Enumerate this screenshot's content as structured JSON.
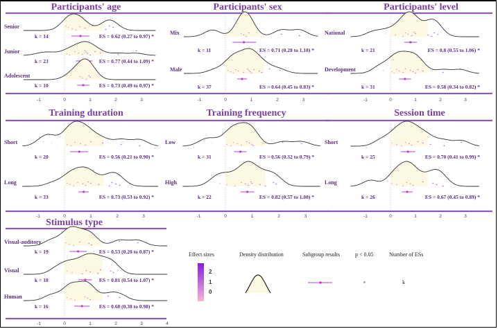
{
  "chart_data": {
    "type": "density-ridgeline",
    "title": "",
    "xlabel": "",
    "ylabel": "",
    "x_ticks": [
      -1,
      0,
      1,
      2,
      3
    ],
    "x_ticks_stimulus": [
      -1,
      0,
      1,
      2,
      3,
      4
    ],
    "reference_line_x": 0,
    "panels": [
      {
        "title": "Participants' age",
        "groups": [
          {
            "label": "Senior",
            "k": 14,
            "es": 0.62,
            "ci": [
              0.27,
              0.97
            ],
            "es_text": "ES = 0.62 (0.27 to 0.97) *",
            "k_text": "k = 14",
            "points": [
              0.05,
              0.15,
              0.3,
              0.45,
              0.6,
              0.8,
              1.6,
              1.75,
              1.9
            ]
          },
          {
            "label": "Junior",
            "k": 23,
            "es": 0.77,
            "ci": [
              0.44,
              1.09
            ],
            "es_text": "ES = 0.77 (0.44 to 1.09) *",
            "k_text": "k = 23",
            "points": [
              -0.9,
              -0.5,
              0.1,
              0.2,
              0.4,
              0.55,
              0.7,
              0.8,
              0.85,
              0.9,
              1.0,
              1.2,
              1.4,
              2.1,
              2.8
            ]
          },
          {
            "label": "Adolescent",
            "k": 10,
            "es": 0.73,
            "ci": [
              0.49,
              0.97
            ],
            "es_text": "ES = 0.73 (0.49 to 0.97) *",
            "k_text": "k = 10",
            "points": [
              0.25,
              0.6,
              0.7,
              0.85,
              0.95,
              1.0
            ]
          }
        ]
      },
      {
        "title": "Participants' sex",
        "groups": [
          {
            "label": "Mix",
            "k": 11,
            "es": 0.71,
            "ci": [
              0.28,
              1.18
            ],
            "es_text": "ES = 0.71 (0.28 to 1.18) *",
            "k_text": "k = 11",
            "points": [
              -0.5,
              0.6,
              0.7,
              0.8,
              0.9,
              2.15,
              2.85
            ]
          },
          {
            "label": "Male",
            "k": 37,
            "es": 0.64,
            "ci": [
              0.45,
              0.83
            ],
            "es_text": "ES = 0.64 (0.45 to 0.83) *",
            "k_text": "k = 37",
            "points": [
              -0.4,
              0.1,
              0.2,
              0.3,
              0.4,
              0.5,
              0.7,
              0.85,
              0.9,
              0.95,
              1.0,
              1.1,
              1.3,
              1.4,
              1.7,
              2.1
            ]
          }
        ]
      },
      {
        "title": "Participants' level",
        "groups": [
          {
            "label": "National",
            "k": 21,
            "es": 0.8,
            "ci": [
              0.55,
              1.06
            ],
            "es_text": "ES = 0.8 (0.55 to 1.06) *",
            "k_text": "k = 21",
            "points": [
              -0.7,
              -0.2,
              0.2,
              0.5,
              0.6,
              0.7,
              0.85,
              0.95,
              1.0,
              1.5,
              1.65,
              1.75,
              1.9
            ]
          },
          {
            "label": "Development",
            "k": 31,
            "es": 0.58,
            "ci": [
              0.34,
              0.82
            ],
            "es_text": "ES = 0.58 (0.34 to 0.82) *",
            "k_text": "k = 31",
            "points": [
              -0.5,
              -0.3,
              0.05,
              0.15,
              0.25,
              0.35,
              0.5,
              0.6,
              0.8,
              0.9,
              1.0,
              1.1,
              1.3,
              2.1,
              2.8
            ]
          }
        ]
      },
      {
        "title": "Training duration",
        "groups": [
          {
            "label": "Short",
            "k": 20,
            "es": 0.56,
            "ci": [
              0.21,
              0.9
            ],
            "es_text": "ES = 0.56 (0.21 to 0.90) *",
            "k_text": "k = 20",
            "points": [
              -0.8,
              -0.5,
              0.1,
              0.25,
              0.4,
              0.6,
              0.8,
              1.0,
              1.45,
              2.15,
              2.85
            ]
          },
          {
            "label": "Long",
            "k": 33,
            "es": 0.73,
            "ci": [
              0.53,
              0.92
            ],
            "es_text": "ES = 0.73 (0.53 to 0.92) *",
            "k_text": "k = 33",
            "points": [
              -0.4,
              0.1,
              0.2,
              0.35,
              0.5,
              0.7,
              0.8,
              0.9,
              1.0,
              1.3,
              1.7,
              1.8,
              1.95,
              2.1
            ]
          }
        ]
      },
      {
        "title": "Training frequency",
        "groups": [
          {
            "label": "Low",
            "k": 31,
            "es": 0.56,
            "ci": [
              0.32,
              0.79
            ],
            "es_text": "ES = 0.56 (0.32 to 0.79) *",
            "k_text": "k = 31",
            "points": [
              -0.8,
              -0.5,
              0.05,
              0.2,
              0.3,
              0.45,
              0.6,
              0.8,
              0.9,
              1.0,
              1.05,
              2.15,
              2.85
            ]
          },
          {
            "label": "High",
            "k": 22,
            "es": 0.82,
            "ci": [
              0.57,
              1.08
            ],
            "es_text": "ES = 0.82 (0.57 to 1.08) *",
            "k_text": "k = 22",
            "points": [
              -0.4,
              -0.2,
              0.05,
              0.35,
              0.6,
              0.75,
              0.85,
              0.95,
              1.0,
              1.3,
              1.5,
              1.8,
              1.9
            ]
          }
        ]
      },
      {
        "title": "Session time",
        "groups": [
          {
            "label": "Short",
            "k": 25,
            "es": 0.7,
            "ci": [
              0.41,
              0.99
            ],
            "es_text": "ES = 0.70 (0.41 to 0.99) *",
            "k_text": "k = 25",
            "points": [
              -0.4,
              0.05,
              0.25,
              0.45,
              0.6,
              0.75,
              0.85,
              1.1,
              1.3,
              1.6,
              2.15,
              2.85
            ]
          },
          {
            "label": "Long",
            "k": 26,
            "es": 0.67,
            "ci": [
              0.45,
              0.89
            ],
            "es_text": "ES = 0.67 (0.45 to 0.89) *",
            "k_text": "k = 26",
            "points": [
              -0.8,
              0.05,
              0.25,
              0.5,
              0.65,
              0.8,
              0.9,
              1.3,
              1.7,
              1.85,
              2.1
            ]
          }
        ]
      },
      {
        "title": "Stimulus type",
        "groups": [
          {
            "label": "Visual-auditory",
            "k": 19,
            "es": 0.53,
            "ci": [
              0.2,
              0.87
            ],
            "es_text": "ES = 0.53 (0.20 to 0.87) *",
            "k_text": "k = 19",
            "points": [
              -0.5,
              0.05,
              0.2,
              0.35,
              0.6,
              0.95,
              1.05,
              2.15,
              2.85
            ]
          },
          {
            "label": "Visual",
            "k": 18,
            "es": 0.81,
            "ci": [
              0.54,
              1.07
            ],
            "es_text": "ES = 0.81 (0.54 to 1.07) *",
            "k_text": "k = 18",
            "points": [
              -0.3,
              0.1,
              0.3,
              0.7,
              0.85,
              1.0,
              1.3,
              1.4,
              1.8,
              1.9
            ]
          },
          {
            "label": "Human",
            "k": 16,
            "es": 0.68,
            "ci": [
              0.38,
              0.98
            ],
            "es_text": "ES = 0.68 (0.38 to 0.98) *",
            "k_text": "k = 16",
            "points": [
              -0.5,
              0.1,
              0.25,
              0.4,
              0.8,
              0.9,
              1.0,
              1.7,
              2.15
            ]
          }
        ]
      }
    ],
    "legend": {
      "effect_sizes_title": "Effect sizes",
      "effect_sizes_ticks": [
        "2",
        "1",
        "0"
      ],
      "density_title": "Density distribution",
      "subgroup_title": "Subgroup results",
      "p_title": "p < 0.05",
      "p_symbol": "*",
      "number_title": "Number of ESs",
      "number_symbol": "k"
    },
    "colors": {
      "title": "#7b3fa0",
      "rule": "#8a5bb5",
      "density_fill": "#fbf9e3",
      "density_line": "#333333",
      "subgroup": "#c23ccf",
      "gradient_top": "#8a1be0",
      "gradient_bottom": "#f8b6d6"
    }
  }
}
